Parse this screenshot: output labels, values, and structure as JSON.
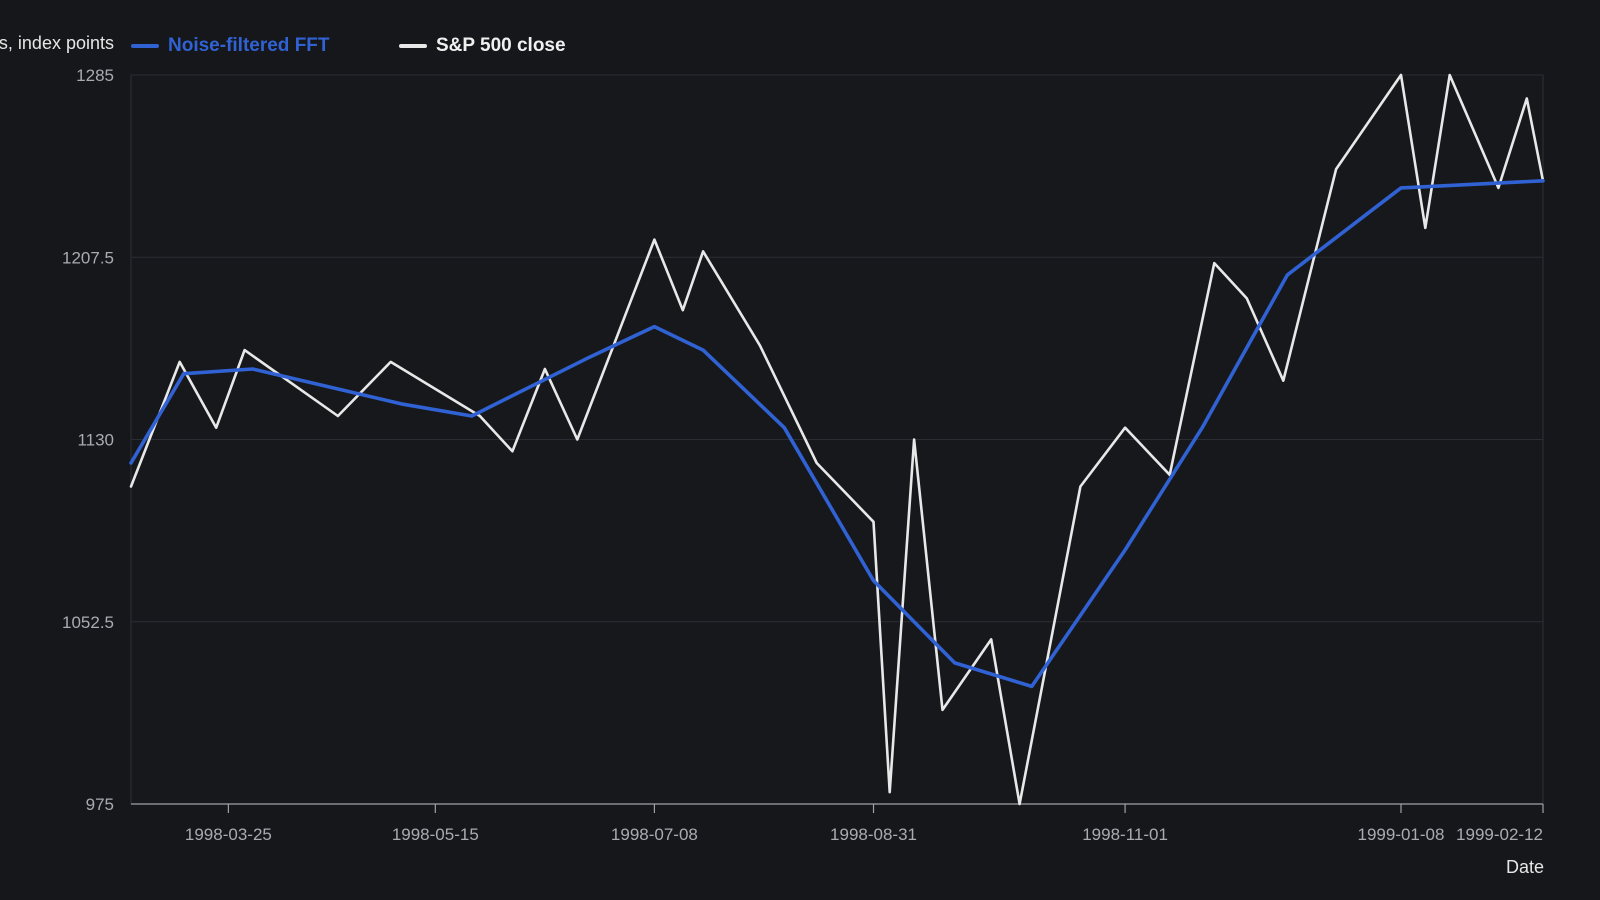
{
  "chart_data": {
    "type": "line",
    "title": "",
    "xlabel": "Date",
    "ylabel": "s, index points",
    "ylim": [
      975,
      1285
    ],
    "yticks": [
      "975",
      "1052.5",
      "1130",
      "1207.5",
      "1285"
    ],
    "xlim": [
      "1998-03-01",
      "1999-02-12"
    ],
    "xticks": [
      "1998-03-25",
      "1998-05-15",
      "1998-07-08",
      "1998-08-31",
      "1998-11-01",
      "1999-01-08",
      "1999-02-12"
    ],
    "grid": "horizontal",
    "legend_position": "top-left",
    "series": [
      {
        "name": "Noise-filtered FFT",
        "color": "#3062d4",
        "points": [
          [
            "1998-03-01",
            1120
          ],
          [
            "1998-03-14",
            1158
          ],
          [
            "1998-03-31",
            1160
          ],
          [
            "1998-05-07",
            1145
          ],
          [
            "1998-05-24",
            1140
          ],
          [
            "1998-06-22",
            1165
          ],
          [
            "1998-07-08",
            1178
          ],
          [
            "1998-07-20",
            1168
          ],
          [
            "1998-08-09",
            1135
          ],
          [
            "1998-08-31",
            1070
          ],
          [
            "1998-09-20",
            1035
          ],
          [
            "1998-10-09",
            1025
          ],
          [
            "1998-11-01",
            1083
          ],
          [
            "1998-11-20",
            1135
          ],
          [
            "1998-12-11",
            1200
          ],
          [
            "1999-01-08",
            1237
          ],
          [
            "1999-02-12",
            1240
          ]
        ]
      },
      {
        "name": "S&P 500 close",
        "color": "#e8e8e8",
        "points": [
          [
            "1998-03-01",
            1110
          ],
          [
            "1998-03-13",
            1163
          ],
          [
            "1998-03-22",
            1135
          ],
          [
            "1998-03-29",
            1168
          ],
          [
            "1998-04-21",
            1140
          ],
          [
            "1998-05-04",
            1163
          ],
          [
            "1998-05-26",
            1140
          ],
          [
            "1998-06-03",
            1125
          ],
          [
            "1998-06-11",
            1160
          ],
          [
            "1998-06-19",
            1130
          ],
          [
            "1998-07-08",
            1215
          ],
          [
            "1998-07-15",
            1185
          ],
          [
            "1998-07-20",
            1210
          ],
          [
            "1998-08-03",
            1170
          ],
          [
            "1998-08-17",
            1120
          ],
          [
            "1998-08-31",
            1095
          ],
          [
            "1998-09-04",
            980
          ],
          [
            "1998-09-10",
            1130
          ],
          [
            "1998-09-17",
            1015
          ],
          [
            "1998-09-29",
            1045
          ],
          [
            "1998-10-06",
            975
          ],
          [
            "1998-10-21",
            1110
          ],
          [
            "1998-11-01",
            1135
          ],
          [
            "1998-11-12",
            1115
          ],
          [
            "1998-11-23",
            1205
          ],
          [
            "1998-12-01",
            1190
          ],
          [
            "1998-12-10",
            1155
          ],
          [
            "1998-12-23",
            1245
          ],
          [
            "1999-01-08",
            1285
          ],
          [
            "1999-01-14",
            1220
          ],
          [
            "1999-01-20",
            1285
          ],
          [
            "1999-02-01",
            1237
          ],
          [
            "1999-02-08",
            1275
          ],
          [
            "1999-02-12",
            1240
          ]
        ]
      }
    ]
  }
}
